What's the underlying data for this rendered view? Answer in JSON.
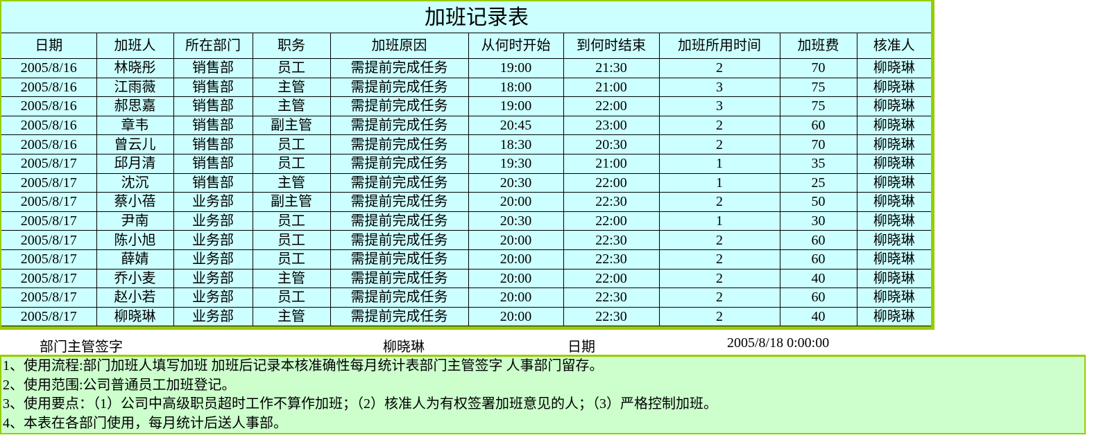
{
  "title": "加班记录表",
  "headers": [
    "日期",
    "加班人",
    "所在部门",
    "职务",
    "加班原因",
    "从何时开始",
    "到何时结束",
    "加班所用时间",
    "加班费",
    "核准人"
  ],
  "rows": [
    [
      "2005/8/16",
      "林晓彤",
      "销售部",
      "员工",
      "需提前完成任务",
      "19:00",
      "21:30",
      "2",
      "70",
      "柳晓琳"
    ],
    [
      "2005/8/16",
      "江雨薇",
      "销售部",
      "主管",
      "需提前完成任务",
      "18:00",
      "21:00",
      "3",
      "75",
      "柳晓琳"
    ],
    [
      "2005/8/16",
      "郝思嘉",
      "销售部",
      "主管",
      "需提前完成任务",
      "19:00",
      "22:00",
      "3",
      "75",
      "柳晓琳"
    ],
    [
      "2005/8/16",
      "章韦",
      "销售部",
      "副主管",
      "需提前完成任务",
      "20:45",
      "23:00",
      "2",
      "60",
      "柳晓琳"
    ],
    [
      "2005/8/16",
      "曾云儿",
      "销售部",
      "员工",
      "需提前完成任务",
      "18:30",
      "20:30",
      "2",
      "70",
      "柳晓琳"
    ],
    [
      "2005/8/17",
      "邱月清",
      "销售部",
      "员工",
      "需提前完成任务",
      "19:30",
      "21:00",
      "1",
      "35",
      "柳晓琳"
    ],
    [
      "2005/8/17",
      "沈沉",
      "销售部",
      "主管",
      "需提前完成任务",
      "20:30",
      "22:00",
      "1",
      "25",
      "柳晓琳"
    ],
    [
      "2005/8/17",
      "蔡小蓓",
      "业务部",
      "副主管",
      "需提前完成任务",
      "20:00",
      "22:30",
      "2",
      "50",
      "柳晓琳"
    ],
    [
      "2005/8/17",
      "尹南",
      "业务部",
      "员工",
      "需提前完成任务",
      "20:30",
      "22:00",
      "1",
      "30",
      "柳晓琳"
    ],
    [
      "2005/8/17",
      "陈小旭",
      "业务部",
      "员工",
      "需提前完成任务",
      "20:00",
      "22:30",
      "2",
      "60",
      "柳晓琳"
    ],
    [
      "2005/8/17",
      "薛婧",
      "业务部",
      "员工",
      "需提前完成任务",
      "20:00",
      "22:30",
      "2",
      "60",
      "柳晓琳"
    ],
    [
      "2005/8/17",
      "乔小麦",
      "业务部",
      "主管",
      "需提前完成任务",
      "20:00",
      "22:00",
      "2",
      "40",
      "柳晓琳"
    ],
    [
      "2005/8/17",
      "赵小若",
      "业务部",
      "员工",
      "需提前完成任务",
      "20:00",
      "22:30",
      "2",
      "60",
      "柳晓琳"
    ],
    [
      "2005/8/17",
      "柳晓琳",
      "业务部",
      "主管",
      "需提前完成任务",
      "20:00",
      "22:30",
      "2",
      "40",
      "柳晓琳"
    ]
  ],
  "sign": {
    "label": "部门主管签字",
    "name": "柳晓琳",
    "date_label": "日期",
    "date": "2005/8/18 0:00:00"
  },
  "notes": [
    "1、使用流程:部门加班人填写加班 加班后记录本核准确性每月统计表部门主管签字 人事部门留存。",
    "2、使用范围:公司普通员工加班登记。",
    "3、使用要点：（1）公司中高级职员超时工作不算作加班；（2）核准人为有权签署加班意见的人；（3）严格控制加班。",
    "4、本表在各部门使用，每月统计后送人事部。"
  ],
  "colors": {
    "table_bg": "#ccffff",
    "border_accent": "#99cc00",
    "notes_bg": "#ccffcc"
  }
}
